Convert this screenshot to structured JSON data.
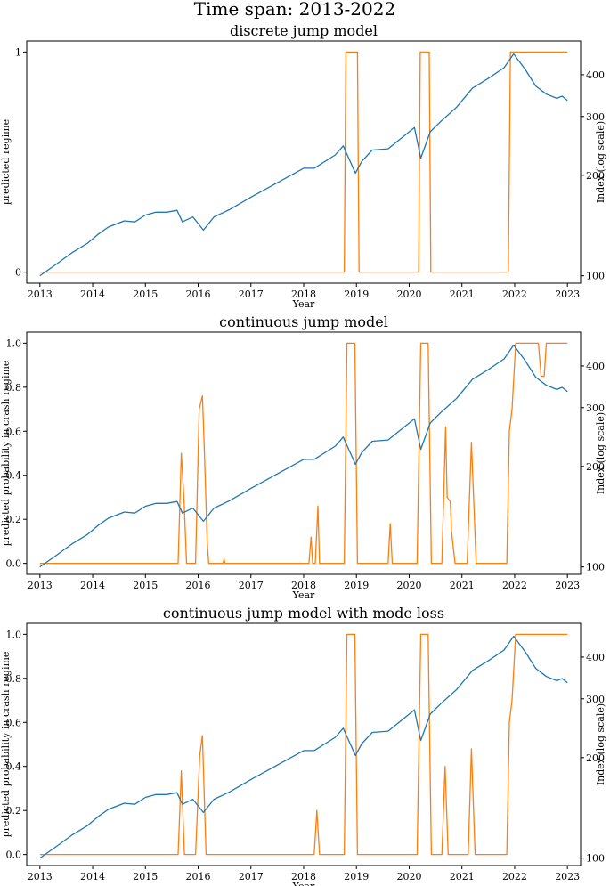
{
  "figure": {
    "suptitle": "Time span: 2013-2022"
  },
  "colors": {
    "index_line": "#1f77b4",
    "regime_line": "#ff7f0e",
    "axes": "#000000"
  },
  "chart_data": [
    {
      "type": "line",
      "title": "discrete jump model",
      "xlabel": "Year",
      "ylabel": "predicted regime",
      "y2label": "Index (log scale)",
      "xlim": [
        2012.75,
        2023.25
      ],
      "ylim": [
        -0.05,
        1.05
      ],
      "y2lim": [
        95,
        505
      ],
      "y2scale": "log",
      "x_ticks": [
        "2013",
        "2014",
        "2015",
        "2016",
        "2017",
        "2018",
        "2019",
        "2020",
        "2021",
        "2022",
        "2023"
      ],
      "y_ticks": [
        "0",
        "1"
      ],
      "y2_ticks": [
        "100",
        "200",
        "300",
        "400"
      ],
      "grid": false,
      "series": [
        {
          "axis": "left",
          "x": [
            2013.0,
            2018.77,
            2018.8,
            2019.02,
            2019.05,
            2020.18,
            2020.21,
            2020.38,
            2020.41,
            2021.88,
            2021.92,
            2023.0
          ],
          "values": [
            0,
            0,
            1,
            1,
            0,
            0,
            1,
            1,
            0,
            0,
            1,
            1
          ]
        },
        {
          "axis": "right",
          "x": [
            2013.0,
            2013.3,
            2013.6,
            2013.9,
            2014.1,
            2014.3,
            2014.6,
            2014.8,
            2015.0,
            2015.2,
            2015.4,
            2015.6,
            2015.7,
            2015.9,
            2016.1,
            2016.3,
            2016.6,
            2017.0,
            2017.5,
            2018.0,
            2018.2,
            2018.6,
            2018.75,
            2018.98,
            2019.1,
            2019.3,
            2019.6,
            2019.9,
            2020.1,
            2020.22,
            2020.4,
            2020.6,
            2020.9,
            2021.2,
            2021.5,
            2021.8,
            2021.98,
            2022.2,
            2022.4,
            2022.6,
            2022.8,
            2022.9,
            2023.0
          ],
          "values": [
            100,
            108,
            117,
            125,
            133,
            140,
            146,
            145,
            152,
            155,
            155,
            157,
            145,
            150,
            137,
            150,
            158,
            172,
            190,
            210,
            210,
            230,
            245,
            203,
            220,
            238,
            240,
            262,
            278,
            225,
            270,
            290,
            320,
            365,
            390,
            420,
            462,
            415,
            370,
            350,
            340,
            345,
            335
          ]
        }
      ]
    },
    {
      "type": "line",
      "title": "continuous jump model",
      "xlabel": "Year",
      "ylabel": "predicted probability in crash regime",
      "y2label": "Index (log scale)",
      "xlim": [
        2012.75,
        2023.25
      ],
      "ylim": [
        -0.05,
        1.05
      ],
      "y2lim": [
        95,
        505
      ],
      "y2scale": "log",
      "x_ticks": [
        "2013",
        "2014",
        "2015",
        "2016",
        "2017",
        "2018",
        "2019",
        "2020",
        "2021",
        "2022",
        "2023"
      ],
      "y_ticks": [
        "0.0",
        "0.2",
        "0.4",
        "0.6",
        "0.8",
        "1.0"
      ],
      "y2_ticks": [
        "100",
        "200",
        "300",
        "400"
      ],
      "grid": false,
      "series": [
        {
          "axis": "left",
          "x": [
            2013.0,
            2015.62,
            2015.68,
            2015.73,
            2015.78,
            2015.95,
            2016.02,
            2016.08,
            2016.12,
            2016.17,
            2016.2,
            2016.47,
            2016.49,
            2016.51,
            2018.1,
            2018.14,
            2018.17,
            2018.22,
            2018.27,
            2018.3,
            2018.77,
            2018.82,
            2018.97,
            2019.02,
            2019.6,
            2019.64,
            2019.68,
            2020.15,
            2020.22,
            2020.36,
            2020.42,
            2020.62,
            2020.69,
            2020.72,
            2020.78,
            2020.8,
            2020.87,
            2021.1,
            2021.18,
            2021.27,
            2021.85,
            2021.9,
            2021.95,
            2022.02,
            2022.45,
            2022.5,
            2022.56,
            2022.6,
            2023.0
          ],
          "values": [
            0,
            0,
            0.5,
            0.3,
            0,
            0,
            0.7,
            0.76,
            0.5,
            0.1,
            0,
            0,
            0.02,
            0,
            0,
            0.12,
            0,
            0,
            0.26,
            0,
            0,
            1,
            1,
            0,
            0,
            0.18,
            0,
            0,
            1,
            1,
            0,
            0,
            0.62,
            0.3,
            0.28,
            0.15,
            0,
            0,
            0.55,
            0,
            0,
            0.6,
            0.7,
            1,
            1,
            0.85,
            0.85,
            1,
            1
          ]
        },
        {
          "axis": "right",
          "x": [
            2013.0,
            2013.3,
            2013.6,
            2013.9,
            2014.1,
            2014.3,
            2014.6,
            2014.8,
            2015.0,
            2015.2,
            2015.4,
            2015.6,
            2015.7,
            2015.9,
            2016.1,
            2016.3,
            2016.6,
            2017.0,
            2017.5,
            2018.0,
            2018.2,
            2018.6,
            2018.75,
            2018.98,
            2019.1,
            2019.3,
            2019.6,
            2019.9,
            2020.1,
            2020.22,
            2020.4,
            2020.6,
            2020.9,
            2021.2,
            2021.5,
            2021.8,
            2021.98,
            2022.2,
            2022.4,
            2022.6,
            2022.8,
            2022.9,
            2023.0
          ],
          "values": [
            100,
            108,
            117,
            125,
            133,
            140,
            146,
            145,
            152,
            155,
            155,
            157,
            145,
            150,
            137,
            150,
            158,
            172,
            190,
            210,
            210,
            230,
            245,
            203,
            220,
            238,
            240,
            262,
            278,
            225,
            270,
            290,
            320,
            365,
            390,
            420,
            462,
            415,
            370,
            350,
            340,
            345,
            335
          ]
        }
      ]
    },
    {
      "type": "line",
      "title": "continuous jump model with mode loss",
      "xlabel": "Year",
      "ylabel": "predicted probability in crash regime",
      "y2label": "Index (log scale)",
      "xlim": [
        2012.75,
        2023.25
      ],
      "ylim": [
        -0.05,
        1.05
      ],
      "y2lim": [
        95,
        505
      ],
      "y2scale": "log",
      "x_ticks": [
        "2013",
        "2014",
        "2015",
        "2016",
        "2017",
        "2018",
        "2019",
        "2020",
        "2021",
        "2022",
        "2023"
      ],
      "y_ticks": [
        "0.0",
        "0.2",
        "0.4",
        "0.6",
        "0.8",
        "1.0"
      ],
      "y2_ticks": [
        "100",
        "200",
        "300",
        "400"
      ],
      "grid": false,
      "series": [
        {
          "axis": "left",
          "x": [
            2013.0,
            2015.62,
            2015.68,
            2015.74,
            2015.95,
            2016.03,
            2016.08,
            2016.15,
            2018.2,
            2018.25,
            2018.3,
            2018.77,
            2018.82,
            2018.97,
            2019.02,
            2020.15,
            2020.22,
            2020.36,
            2020.42,
            2020.62,
            2020.68,
            2020.74,
            2021.12,
            2021.18,
            2021.25,
            2021.85,
            2021.9,
            2021.95,
            2022.02,
            2023.0
          ],
          "values": [
            0,
            0,
            0.38,
            0,
            0,
            0.45,
            0.54,
            0,
            0,
            0.2,
            0,
            0,
            1,
            1,
            0,
            0,
            1,
            1,
            0,
            0,
            0.4,
            0,
            0,
            0.48,
            0,
            0,
            0.6,
            0.7,
            1,
            1
          ]
        },
        {
          "axis": "right",
          "x": [
            2013.0,
            2013.3,
            2013.6,
            2013.9,
            2014.1,
            2014.3,
            2014.6,
            2014.8,
            2015.0,
            2015.2,
            2015.4,
            2015.6,
            2015.7,
            2015.9,
            2016.1,
            2016.3,
            2016.6,
            2017.0,
            2017.5,
            2018.0,
            2018.2,
            2018.6,
            2018.75,
            2018.98,
            2019.1,
            2019.3,
            2019.6,
            2019.9,
            2020.1,
            2020.22,
            2020.4,
            2020.6,
            2020.9,
            2021.2,
            2021.5,
            2021.8,
            2021.98,
            2022.2,
            2022.4,
            2022.6,
            2022.8,
            2022.9,
            2023.0
          ],
          "values": [
            100,
            108,
            117,
            125,
            133,
            140,
            146,
            145,
            152,
            155,
            155,
            157,
            145,
            150,
            137,
            150,
            158,
            172,
            190,
            210,
            210,
            230,
            245,
            203,
            220,
            238,
            240,
            262,
            278,
            225,
            270,
            290,
            320,
            365,
            390,
            420,
            462,
            415,
            370,
            350,
            340,
            345,
            335
          ]
        }
      ]
    }
  ]
}
